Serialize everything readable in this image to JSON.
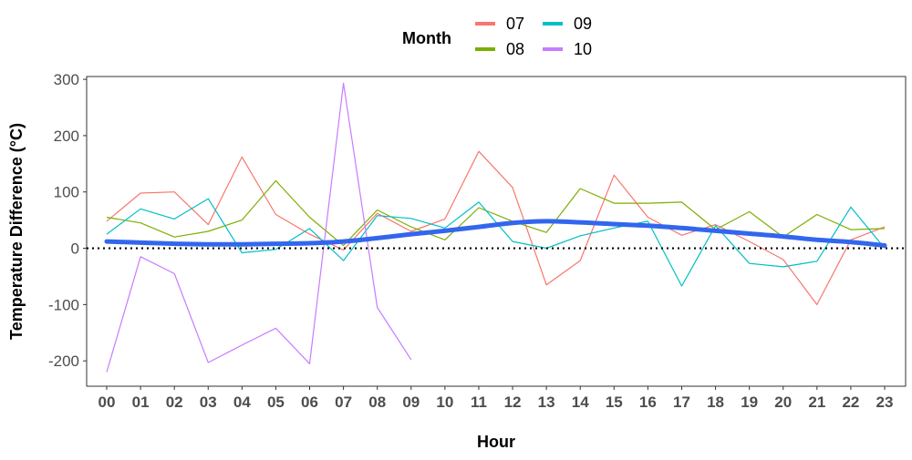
{
  "chart_data": {
    "type": "line",
    "xlabel": "Hour",
    "ylabel": "Temperature Difference (°C)",
    "ylim": [
      -245,
      305
    ],
    "y_ticks": [
      -200,
      -100,
      0,
      100,
      200,
      300
    ],
    "categories": [
      "00",
      "01",
      "02",
      "03",
      "04",
      "05",
      "06",
      "07",
      "08",
      "09",
      "10",
      "11",
      "12",
      "13",
      "14",
      "15",
      "16",
      "17",
      "18",
      "19",
      "20",
      "21",
      "22",
      "23"
    ],
    "legend": {
      "title": "Month",
      "position": "top"
    },
    "series": [
      {
        "name": "07",
        "color": "#F8766D",
        "values": [
          48,
          98,
          100,
          42,
          162,
          60,
          25,
          -3,
          62,
          30,
          52,
          172,
          108,
          -65,
          -22,
          130,
          55,
          23,
          42,
          12,
          -20,
          -100,
          15,
          38
        ]
      },
      {
        "name": "08",
        "color": "#7CAE00",
        "values": [
          55,
          45,
          20,
          30,
          50,
          120,
          55,
          5,
          68,
          38,
          15,
          72,
          48,
          28,
          106,
          80,
          80,
          82,
          33,
          65,
          20,
          60,
          33,
          35
        ]
      },
      {
        "name": "09",
        "color": "#00BFC4",
        "values": [
          25,
          70,
          52,
          88,
          -8,
          -2,
          35,
          -22,
          58,
          53,
          36,
          82,
          12,
          0,
          22,
          36,
          48,
          -67,
          40,
          -27,
          -33,
          -23,
          73,
          0
        ]
      },
      {
        "name": "10",
        "color": "#C77CFF",
        "values": [
          -220,
          -15,
          -45,
          -203,
          -172,
          -142,
          -205,
          293,
          -105,
          -198,
          null,
          null,
          null,
          null,
          null,
          null,
          null,
          null,
          null,
          null,
          null,
          null,
          null,
          null
        ]
      }
    ],
    "smooth_line": {
      "color": "#3366EE",
      "values": [
        12,
        10,
        8,
        7,
        7,
        8,
        9,
        12,
        18,
        25,
        31,
        38,
        45,
        48,
        46,
        43,
        40,
        36,
        31,
        26,
        21,
        15,
        11,
        5
      ]
    },
    "reference_line": {
      "y": 0,
      "style": "dotted",
      "color": "#000000"
    }
  }
}
